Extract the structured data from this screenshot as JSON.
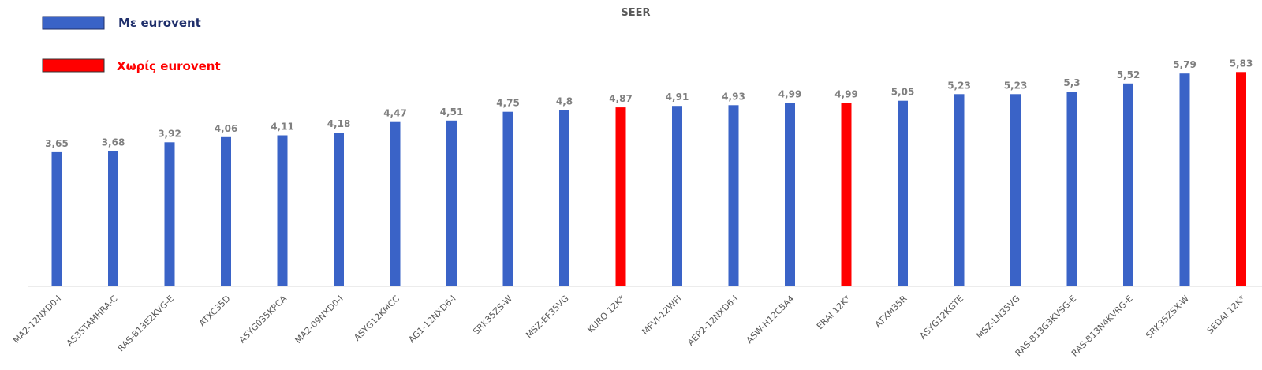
{
  "chart_data": {
    "type": "bar",
    "title": "SEER",
    "xlabel": "",
    "ylabel": "",
    "ylim": [
      0,
      6
    ],
    "grid": false,
    "legend_position": "top-left",
    "legend": [
      {
        "label": "Με eurovent",
        "color": "#3a63c7",
        "text_color": "#1f2f6b"
      },
      {
        "label": "Χωρίς eurovent",
        "color": "#ff0000",
        "text_color": "#ff0000"
      }
    ],
    "categories": [
      "MA2-12NXD0-I",
      "AS35TAMHRA-C",
      "RAS-B13E2KVG-E",
      "ATXC35D",
      "ASYG035KPCA",
      "MA2-09NXD0-I",
      "ASYG12KMCC",
      "AG1-12NXD6-I",
      "SRK35ZS-W",
      "MSZ-EF35VG",
      "KURO 12K*",
      "MFVI-12WFI",
      "AEP2-12NXD6-I",
      "ASW-H12C5A4",
      "ERAI 12K*",
      "ATXM35R",
      "ASYG12KGTE",
      "MSZ-LN35VG",
      "RAS-B13G3KVSG-E",
      "RAS-B13N4KVRG-E",
      "SRK35ZSX-W",
      "SEDAI 12K*"
    ],
    "values": [
      3.65,
      3.68,
      3.92,
      4.06,
      4.11,
      4.18,
      4.47,
      4.51,
      4.75,
      4.8,
      4.87,
      4.91,
      4.93,
      4.99,
      4.99,
      5.05,
      5.23,
      5.23,
      5.3,
      5.52,
      5.79,
      5.83
    ],
    "value_labels": [
      "3,65",
      "3,68",
      "3,92",
      "4,06",
      "4,11",
      "4,18",
      "4,47",
      "4,51",
      "4,75",
      "4,8",
      "4,87",
      "4,91",
      "4,93",
      "4,99",
      "4,99",
      "5,05",
      "5,23",
      "5,23",
      "5,3",
      "5,52",
      "5,79",
      "5,83"
    ],
    "series_index": [
      0,
      0,
      0,
      0,
      0,
      0,
      0,
      0,
      0,
      0,
      1,
      0,
      0,
      0,
      1,
      0,
      0,
      0,
      0,
      0,
      0,
      1
    ],
    "colors": {
      "with_eurovent": "#3a63c7",
      "without_eurovent": "#ff0000",
      "axis": "#d9d9d9"
    }
  }
}
